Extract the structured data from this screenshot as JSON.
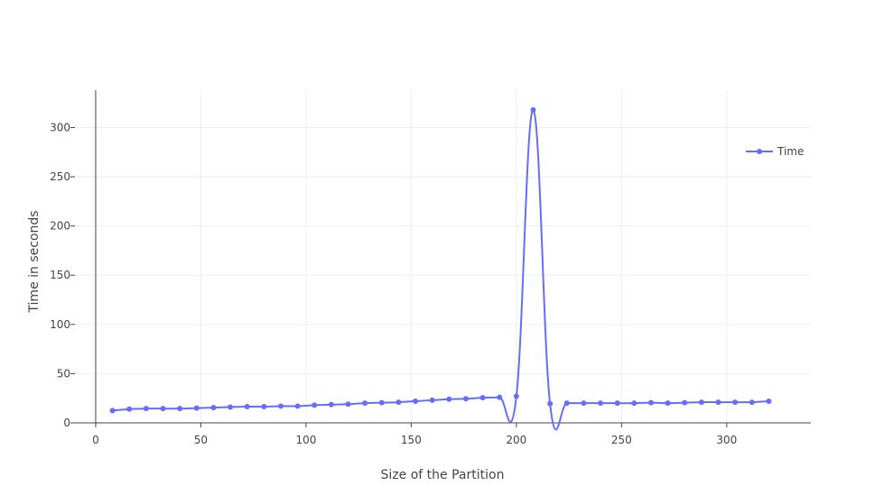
{
  "chart_data": {
    "type": "line",
    "title": "",
    "xlabel": "Size of the Partition",
    "ylabel": "Time in seconds",
    "xlim": [
      -12,
      340
    ],
    "ylim": [
      0,
      338
    ],
    "xticks": [
      0,
      50,
      100,
      150,
      200,
      250,
      300
    ],
    "yticks": [
      0,
      50,
      100,
      150,
      200,
      250,
      300
    ],
    "grid": true,
    "legend_position": "top-right",
    "series": [
      {
        "name": "Time",
        "color": "#636efa",
        "x": [
          8,
          16,
          24,
          32,
          40,
          48,
          56,
          64,
          72,
          80,
          88,
          96,
          104,
          112,
          120,
          128,
          136,
          144,
          152,
          160,
          168,
          176,
          184,
          192,
          200,
          208,
          216,
          224,
          232,
          240,
          248,
          256,
          264,
          272,
          280,
          288,
          296,
          304,
          312,
          320
        ],
        "y": [
          12.5,
          14,
          14.5,
          14.5,
          14.5,
          15,
          15.5,
          16,
          16.5,
          16.5,
          17,
          17,
          18,
          18.5,
          19,
          20,
          20.5,
          21,
          22,
          23,
          24,
          24.5,
          25.5,
          26,
          27,
          318,
          19.5,
          20,
          20,
          20,
          20,
          20,
          20.5,
          20,
          20.5,
          21,
          21,
          21,
          21,
          22
        ]
      }
    ]
  }
}
